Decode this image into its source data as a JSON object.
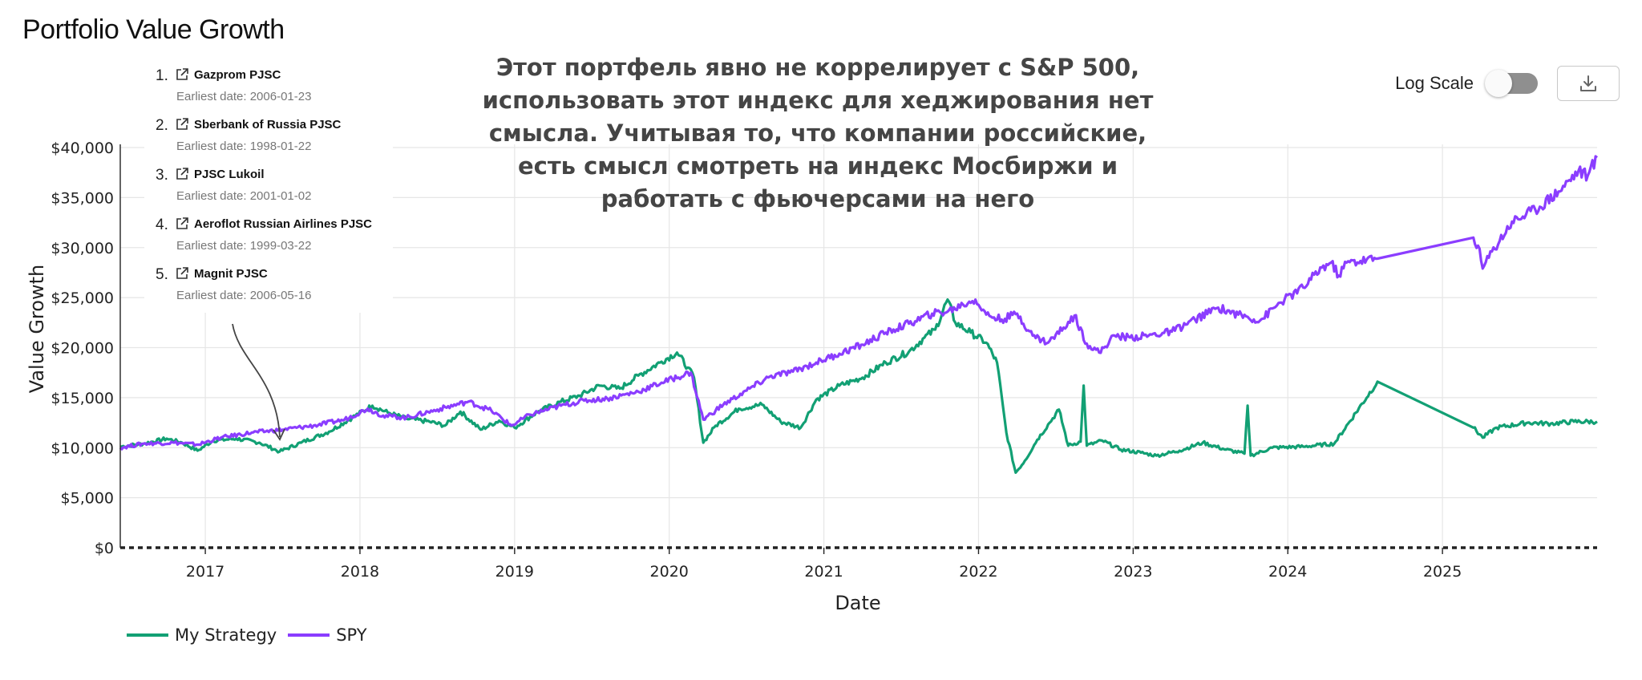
{
  "page": {
    "title": "Portfolio Value Growth",
    "annotation": "Этот портфель явно не коррелирует с S&P 500, использовать этот индекс для хеджирования нет смысла. Учитывая то, что компании российские, есть смысл смотреть на индекс Мосбиржи и работать с фьючерсами на него"
  },
  "controls": {
    "log_scale_label": "Log Scale",
    "log_scale_on": false,
    "download_icon": "download-icon"
  },
  "stocks": [
    {
      "num": "1.",
      "name": "Gazprom PJSC",
      "earliest": "Earliest date: 2006-01-23",
      "icon": "external-link-icon"
    },
    {
      "num": "2.",
      "name": "Sberbank of Russia PJSC",
      "earliest": "Earliest date: 1998-01-22",
      "icon": "external-link-icon"
    },
    {
      "num": "3.",
      "name": "PJSC Lukoil",
      "earliest": "Earliest date: 2001-01-02",
      "icon": "external-link-icon"
    },
    {
      "num": "4.",
      "name": "Aeroflot Russian Airlines PJSC",
      "earliest": "Earliest date: 1999-03-22",
      "icon": "external-link-icon"
    },
    {
      "num": "5.",
      "name": "Magnit PJSC",
      "earliest": "Earliest date: 2006-05-16",
      "icon": "external-link-icon"
    }
  ],
  "colors": {
    "strategy": "#12a074",
    "spy": "#8b3dff",
    "grid": "#e6e6e6",
    "axis": "#222222"
  },
  "chart_data": {
    "type": "line",
    "xlabel": "Date",
    "ylabel": "Value Growth",
    "ylim": [
      0,
      40000
    ],
    "xlim": [
      2016.45,
      2026.0
    ],
    "yticks": [
      {
        "value": 0,
        "label": "$0"
      },
      {
        "value": 5000,
        "label": "$5,000"
      },
      {
        "value": 10000,
        "label": "$10,000"
      },
      {
        "value": 15000,
        "label": "$15,000"
      },
      {
        "value": 20000,
        "label": "$20,000"
      },
      {
        "value": 25000,
        "label": "$25,000"
      },
      {
        "value": 30000,
        "label": "$30,000"
      },
      {
        "value": 35000,
        "label": "$35,000"
      },
      {
        "value": 40000,
        "label": "$40,000"
      }
    ],
    "xticks": [
      {
        "value": 2017,
        "label": "2017"
      },
      {
        "value": 2018,
        "label": "2018"
      },
      {
        "value": 2019,
        "label": "2019"
      },
      {
        "value": 2020,
        "label": "2020"
      },
      {
        "value": 2021,
        "label": "2021"
      },
      {
        "value": 2022,
        "label": "2022"
      },
      {
        "value": 2023,
        "label": "2023"
      },
      {
        "value": 2024,
        "label": "2024"
      },
      {
        "value": 2025,
        "label": "2025"
      }
    ],
    "grid": true,
    "legend_position": "bottom-left",
    "series": [
      {
        "name": "My Strategy",
        "color": "#12a074",
        "points": [
          [
            2016.45,
            10100
          ],
          [
            2016.6,
            10400
          ],
          [
            2016.75,
            10900
          ],
          [
            2016.85,
            10500
          ],
          [
            2016.95,
            9700
          ],
          [
            2017.05,
            10700
          ],
          [
            2017.2,
            10900
          ],
          [
            2017.35,
            10500
          ],
          [
            2017.48,
            9600
          ],
          [
            2017.62,
            10500
          ],
          [
            2017.8,
            11600
          ],
          [
            2017.95,
            13000
          ],
          [
            2018.08,
            14200
          ],
          [
            2018.18,
            13500
          ],
          [
            2018.3,
            12900
          ],
          [
            2018.45,
            12600
          ],
          [
            2018.55,
            12200
          ],
          [
            2018.65,
            13600
          ],
          [
            2018.78,
            11800
          ],
          [
            2018.9,
            12700
          ],
          [
            2019.0,
            12000
          ],
          [
            2019.15,
            13600
          ],
          [
            2019.3,
            14600
          ],
          [
            2019.42,
            15200
          ],
          [
            2019.55,
            16200
          ],
          [
            2019.68,
            15900
          ],
          [
            2019.8,
            17200
          ],
          [
            2019.95,
            18600
          ],
          [
            2020.05,
            19500
          ],
          [
            2020.12,
            18000
          ],
          [
            2020.16,
            17000
          ],
          [
            2020.22,
            10500
          ],
          [
            2020.3,
            12200
          ],
          [
            2020.45,
            13900
          ],
          [
            2020.6,
            14300
          ],
          [
            2020.72,
            12600
          ],
          [
            2020.85,
            12000
          ],
          [
            2020.95,
            14800
          ],
          [
            2021.1,
            16200
          ],
          [
            2021.25,
            17000
          ],
          [
            2021.4,
            18500
          ],
          [
            2021.55,
            19600
          ],
          [
            2021.65,
            21000
          ],
          [
            2021.72,
            21800
          ],
          [
            2021.8,
            24800
          ],
          [
            2021.85,
            22500
          ],
          [
            2021.95,
            21500
          ],
          [
            2022.05,
            20500
          ],
          [
            2022.12,
            18500
          ],
          [
            2022.18,
            11500
          ],
          [
            2022.24,
            7500
          ],
          [
            2022.3,
            8700
          ],
          [
            2022.38,
            10800
          ],
          [
            2022.46,
            12500
          ],
          [
            2022.52,
            13800
          ],
          [
            2022.58,
            10200
          ],
          [
            2022.66,
            10600
          ],
          [
            2022.68,
            16200
          ],
          [
            2022.7,
            10200
          ],
          [
            2022.8,
            10700
          ],
          [
            2022.92,
            9800
          ],
          [
            2023.05,
            9500
          ],
          [
            2023.15,
            9200
          ],
          [
            2023.3,
            9700
          ],
          [
            2023.45,
            10500
          ],
          [
            2023.6,
            9800
          ],
          [
            2023.72,
            9400
          ],
          [
            2023.74,
            14200
          ],
          [
            2023.76,
            9200
          ],
          [
            2023.9,
            10000
          ],
          [
            2024.1,
            10100
          ],
          [
            2024.3,
            10400
          ],
          [
            2024.58,
            16600
          ],
          [
            2025.2,
            12000
          ],
          [
            2025.26,
            11000
          ],
          [
            2025.35,
            12000
          ],
          [
            2025.55,
            12500
          ],
          [
            2025.7,
            12400
          ],
          [
            2025.85,
            12600
          ],
          [
            2026.0,
            12600
          ]
        ]
      },
      {
        "name": "SPY",
        "color": "#8b3dff",
        "points": [
          [
            2016.45,
            10000
          ],
          [
            2016.6,
            10400
          ],
          [
            2016.8,
            10500
          ],
          [
            2016.95,
            10300
          ],
          [
            2017.1,
            11000
          ],
          [
            2017.3,
            11500
          ],
          [
            2017.5,
            11800
          ],
          [
            2017.7,
            12200
          ],
          [
            2017.9,
            12800
          ],
          [
            2018.05,
            13900
          ],
          [
            2018.15,
            13200
          ],
          [
            2018.3,
            13000
          ],
          [
            2018.5,
            13800
          ],
          [
            2018.7,
            14600
          ],
          [
            2018.85,
            13700
          ],
          [
            2018.98,
            12200
          ],
          [
            2019.1,
            13300
          ],
          [
            2019.3,
            14200
          ],
          [
            2019.45,
            14700
          ],
          [
            2019.6,
            14900
          ],
          [
            2019.8,
            15600
          ],
          [
            2019.95,
            16500
          ],
          [
            2020.1,
            17300
          ],
          [
            2020.14,
            17500
          ],
          [
            2020.22,
            12800
          ],
          [
            2020.35,
            14300
          ],
          [
            2020.5,
            15700
          ],
          [
            2020.65,
            17100
          ],
          [
            2020.8,
            17600
          ],
          [
            2020.95,
            18500
          ],
          [
            2021.1,
            19400
          ],
          [
            2021.25,
            20300
          ],
          [
            2021.4,
            21500
          ],
          [
            2021.55,
            22400
          ],
          [
            2021.7,
            23400
          ],
          [
            2021.8,
            23600
          ],
          [
            2021.9,
            24300
          ],
          [
            2021.98,
            24800
          ],
          [
            2022.05,
            23300
          ],
          [
            2022.15,
            22800
          ],
          [
            2022.25,
            23400
          ],
          [
            2022.35,
            21200
          ],
          [
            2022.45,
            20500
          ],
          [
            2022.55,
            22000
          ],
          [
            2022.62,
            23200
          ],
          [
            2022.7,
            20400
          ],
          [
            2022.78,
            19500
          ],
          [
            2022.88,
            21200
          ],
          [
            2022.98,
            21000
          ],
          [
            2023.1,
            21200
          ],
          [
            2023.25,
            21600
          ],
          [
            2023.4,
            22800
          ],
          [
            2023.55,
            24000
          ],
          [
            2023.68,
            23300
          ],
          [
            2023.82,
            22700
          ],
          [
            2023.95,
            24500
          ],
          [
            2024.1,
            26000
          ],
          [
            2024.22,
            28000
          ],
          [
            2024.28,
            28500
          ],
          [
            2024.33,
            27200
          ],
          [
            2024.38,
            28500
          ],
          [
            2024.58,
            28900
          ],
          [
            2025.2,
            31000
          ],
          [
            2025.23,
            30200
          ],
          [
            2025.26,
            27900
          ],
          [
            2025.32,
            29600
          ],
          [
            2025.45,
            32600
          ],
          [
            2025.6,
            33800
          ],
          [
            2025.75,
            35600
          ],
          [
            2025.88,
            37700
          ],
          [
            2025.94,
            37200
          ],
          [
            2026.0,
            39000
          ]
        ]
      }
    ]
  },
  "legend": [
    {
      "label": "My Strategy",
      "color": "#12a074"
    },
    {
      "label": "SPY",
      "color": "#8b3dff"
    }
  ]
}
